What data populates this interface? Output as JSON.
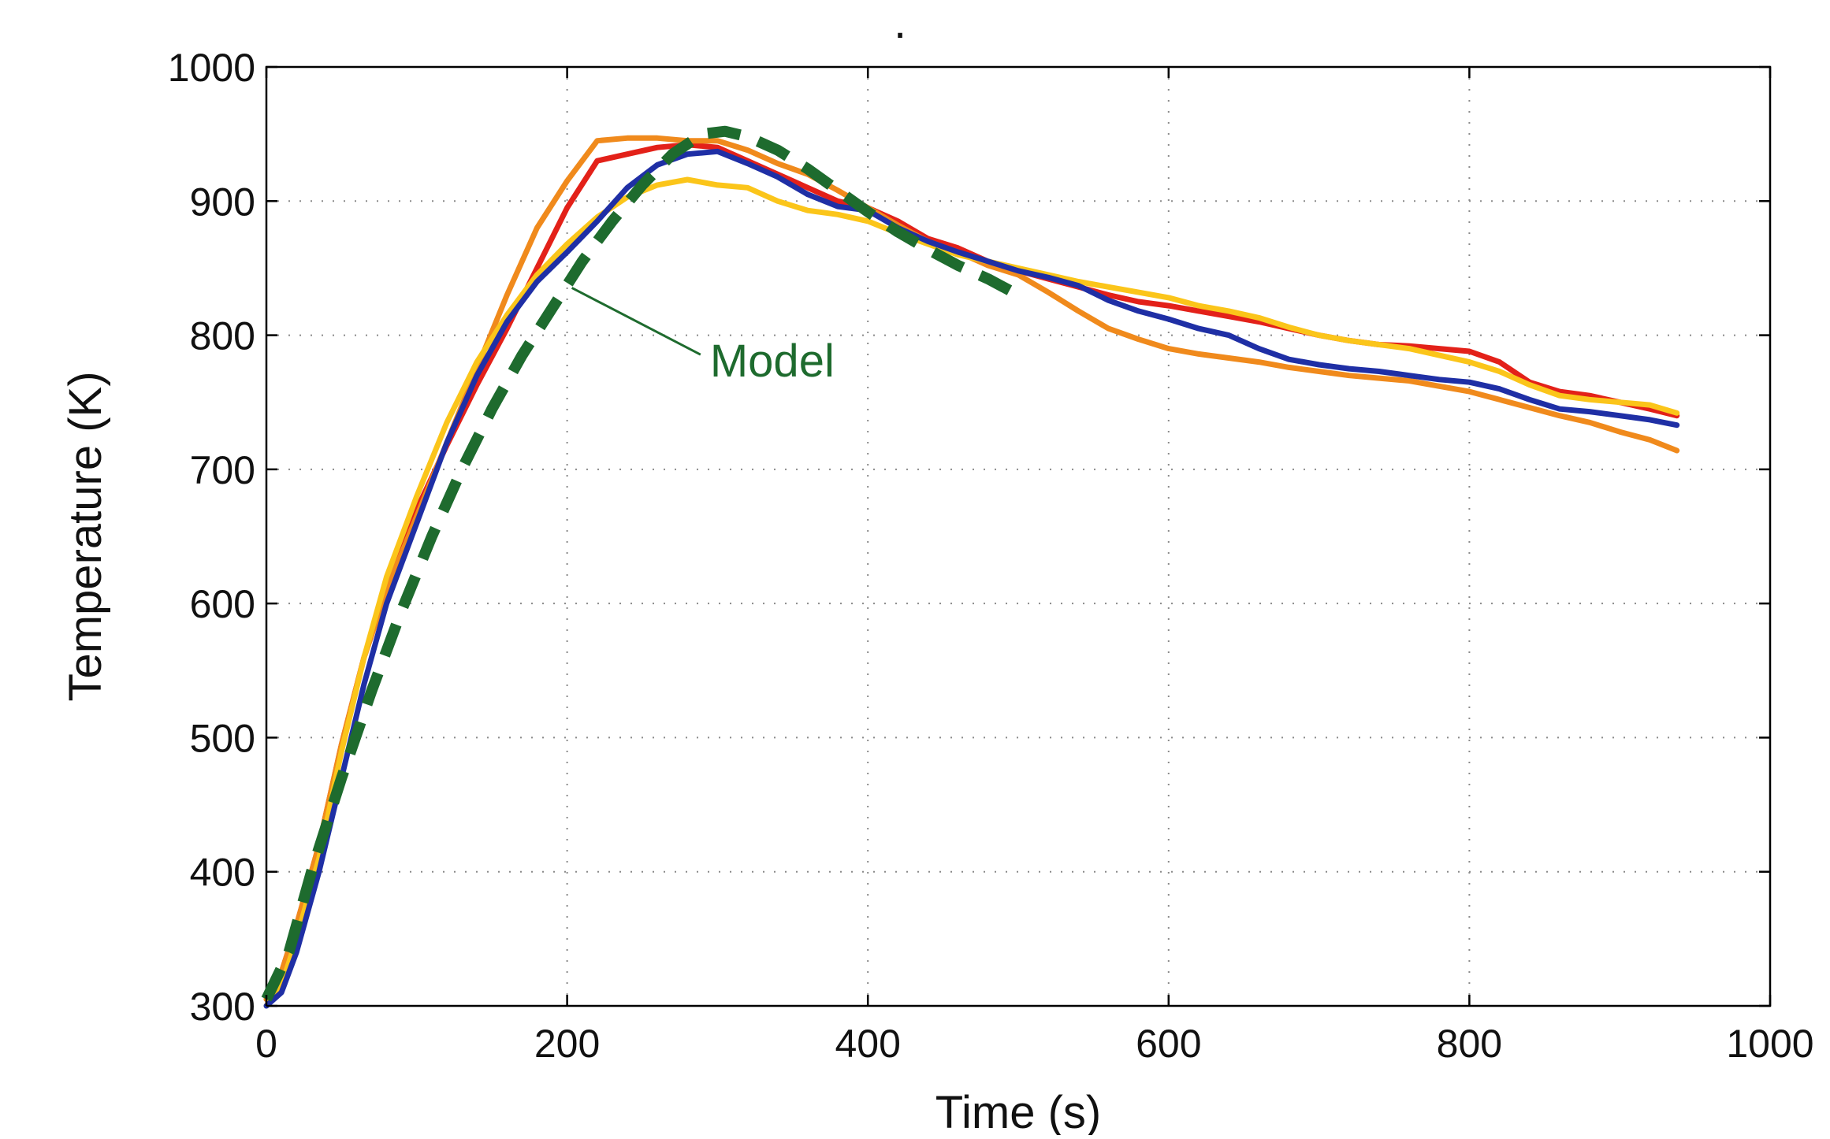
{
  "chart_data": {
    "type": "line",
    "title": ".",
    "xlabel": "Time (s)",
    "ylabel": "Temperature (K)",
    "xlim": [
      0,
      1000
    ],
    "ylim": [
      300,
      1000
    ],
    "xticks": [
      0,
      200,
      400,
      600,
      800,
      1000
    ],
    "yticks": [
      300,
      400,
      500,
      600,
      700,
      800,
      900,
      1000
    ],
    "xtick_labels": [
      "0",
      "200",
      "400",
      "600",
      "800",
      "1000"
    ],
    "ytick_labels": [
      "300",
      "400",
      "500",
      "600",
      "700",
      "800",
      "900",
      "1000"
    ],
    "grid": true,
    "annotation": {
      "text": "Model",
      "x": 200,
      "y": 840,
      "text_x": 295,
      "text_y": 782,
      "color": "#1e6b2e"
    },
    "series": [
      {
        "name": "red",
        "color": "#e32119",
        "style": "solid",
        "x": [
          0,
          10,
          20,
          35,
          50,
          65,
          80,
          100,
          120,
          140,
          160,
          180,
          200,
          220,
          240,
          260,
          280,
          300,
          320,
          340,
          360,
          380,
          400,
          420,
          440,
          460,
          480,
          500,
          520,
          540,
          560,
          580,
          600,
          620,
          640,
          660,
          680,
          700,
          720,
          740,
          760,
          780,
          800,
          820,
          840,
          860,
          880,
          900,
          920,
          938
        ],
        "y": [
          305,
          325,
          360,
          420,
          495,
          560,
          610,
          670,
          718,
          763,
          805,
          850,
          895,
          930,
          935,
          940,
          942,
          940,
          930,
          920,
          910,
          900,
          895,
          885,
          872,
          865,
          855,
          848,
          842,
          836,
          830,
          825,
          822,
          818,
          814,
          810,
          805,
          800,
          796,
          793,
          792,
          790,
          788,
          780,
          765,
          758,
          755,
          750,
          745,
          740
        ]
      },
      {
        "name": "orange",
        "color": "#f08a1c",
        "style": "solid",
        "x": [
          0,
          10,
          20,
          35,
          50,
          65,
          80,
          100,
          120,
          140,
          160,
          180,
          200,
          220,
          240,
          260,
          280,
          300,
          320,
          340,
          360,
          380,
          400,
          420,
          440,
          460,
          480,
          500,
          520,
          540,
          560,
          580,
          600,
          620,
          640,
          660,
          680,
          700,
          720,
          740,
          760,
          780,
          800,
          820,
          840,
          860,
          880,
          900,
          920,
          938
        ],
        "y": [
          305,
          325,
          360,
          420,
          495,
          560,
          610,
          665,
          720,
          775,
          830,
          880,
          915,
          945,
          947,
          947,
          945,
          945,
          938,
          928,
          920,
          908,
          895,
          882,
          870,
          862,
          852,
          845,
          832,
          818,
          805,
          797,
          790,
          786,
          783,
          780,
          776,
          773,
          770,
          768,
          766,
          762,
          758,
          752,
          746,
          740,
          735,
          728,
          722,
          714
        ]
      },
      {
        "name": "yellow",
        "color": "#fbc51a",
        "style": "solid",
        "x": [
          0,
          10,
          20,
          35,
          50,
          65,
          80,
          100,
          120,
          140,
          160,
          180,
          200,
          220,
          240,
          260,
          280,
          300,
          320,
          340,
          360,
          380,
          400,
          420,
          440,
          460,
          480,
          500,
          520,
          540,
          560,
          580,
          600,
          620,
          640,
          660,
          680,
          700,
          720,
          740,
          760,
          780,
          800,
          820,
          840,
          860,
          880,
          900,
          920,
          938
        ],
        "y": [
          300,
          315,
          350,
          410,
          490,
          560,
          620,
          680,
          735,
          780,
          815,
          845,
          868,
          888,
          903,
          912,
          916,
          912,
          910,
          900,
          893,
          890,
          885,
          876,
          868,
          860,
          855,
          850,
          845,
          840,
          836,
          832,
          828,
          822,
          818,
          813,
          806,
          800,
          796,
          793,
          790,
          785,
          780,
          773,
          763,
          755,
          752,
          750,
          748,
          742
        ]
      },
      {
        "name": "blue",
        "color": "#1f2fa5",
        "style": "solid",
        "x": [
          0,
          10,
          20,
          35,
          50,
          65,
          80,
          100,
          120,
          140,
          160,
          180,
          200,
          220,
          240,
          260,
          280,
          300,
          320,
          340,
          360,
          380,
          400,
          420,
          440,
          460,
          480,
          500,
          520,
          540,
          560,
          580,
          600,
          620,
          640,
          660,
          680,
          700,
          720,
          740,
          760,
          780,
          800,
          820,
          840,
          860,
          880,
          900,
          920,
          938
        ],
        "y": [
          300,
          310,
          340,
          400,
          470,
          540,
          600,
          660,
          720,
          770,
          810,
          840,
          862,
          885,
          910,
          927,
          935,
          937,
          928,
          918,
          905,
          896,
          893,
          880,
          870,
          862,
          855,
          848,
          843,
          837,
          826,
          818,
          812,
          805,
          800,
          790,
          782,
          778,
          775,
          773,
          770,
          767,
          765,
          760,
          752,
          745,
          743,
          740,
          737,
          733
        ]
      },
      {
        "name": "Model",
        "color": "#1e6b2e",
        "style": "dashed",
        "x": [
          0,
          15,
          30,
          50,
          70,
          90,
          110,
          130,
          150,
          170,
          190,
          210,
          230,
          250,
          270,
          290,
          305,
          320,
          340,
          360,
          380,
          400,
          420,
          440,
          460,
          480,
          500
        ],
        "y": [
          305,
          340,
          400,
          470,
          535,
          595,
          650,
          700,
          745,
          785,
          820,
          855,
          885,
          912,
          935,
          950,
          952,
          948,
          938,
          924,
          908,
          892,
          877,
          864,
          852,
          842,
          830
        ]
      }
    ]
  }
}
